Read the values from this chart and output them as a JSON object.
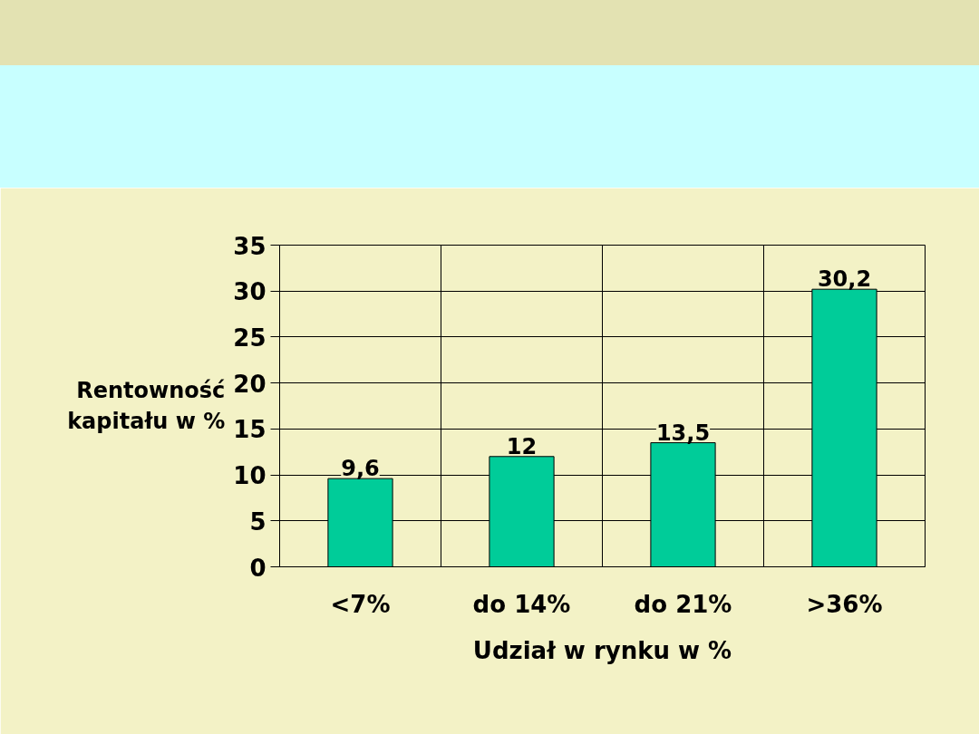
{
  "chart_data": {
    "type": "bar",
    "categories": [
      "<7%",
      "do 14%",
      "do 21%",
      ">36%"
    ],
    "values": [
      9.6,
      12,
      13.5,
      30.2
    ],
    "value_labels": [
      "9,6",
      "12",
      "13,5",
      "30,2"
    ],
    "color": "#00cc99",
    "xlabel": "Udział w rynku w %",
    "ylabel": "Rentowność kapitału w %",
    "ylim": [
      0,
      35
    ],
    "yticks": [
      0,
      5,
      10,
      15,
      20,
      25,
      30,
      35
    ],
    "grid": true
  }
}
